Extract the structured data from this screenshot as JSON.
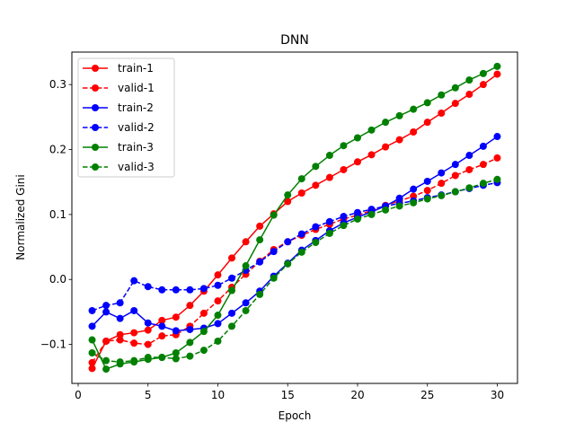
{
  "chart_data": {
    "type": "line",
    "title": "DNN",
    "xlabel": "Epoch",
    "ylabel": "Normalized Gini",
    "xlim": [
      -0.45,
      31.45
    ],
    "ylim": [
      -0.16,
      0.35
    ],
    "xticks": [
      0,
      5,
      10,
      15,
      20,
      25,
      30
    ],
    "yticks": [
      -0.1,
      0.0,
      0.1,
      0.2,
      0.3
    ],
    "ytick_labels": [
      "−0.1",
      "0.0",
      "0.1",
      "0.2",
      "0.3"
    ],
    "grid": false,
    "legend_position": "upper-left",
    "x": [
      1,
      2,
      3,
      4,
      5,
      6,
      7,
      8,
      9,
      10,
      11,
      12,
      13,
      14,
      15,
      16,
      17,
      18,
      19,
      20,
      21,
      22,
      23,
      24,
      25,
      26,
      27,
      28,
      29,
      30
    ],
    "series": [
      {
        "name": "train-1",
        "color": "#ff0000",
        "dash": false,
        "values": [
          -0.137,
          -0.095,
          -0.085,
          -0.082,
          -0.078,
          -0.063,
          -0.058,
          -0.04,
          -0.018,
          0.007,
          0.033,
          0.058,
          0.082,
          0.101,
          0.12,
          0.133,
          0.145,
          0.157,
          0.169,
          0.181,
          0.192,
          0.204,
          0.215,
          0.227,
          0.242,
          0.256,
          0.271,
          0.285,
          0.3,
          0.316
        ]
      },
      {
        "name": "valid-1",
        "color": "#ff0000",
        "dash": true,
        "values": [
          -0.128,
          -0.095,
          -0.093,
          -0.098,
          -0.1,
          -0.087,
          -0.085,
          -0.072,
          -0.052,
          -0.033,
          -0.012,
          0.008,
          0.028,
          0.046,
          0.058,
          0.068,
          0.077,
          0.085,
          0.093,
          0.099,
          0.106,
          0.114,
          0.121,
          0.128,
          0.137,
          0.148,
          0.16,
          0.169,
          0.177,
          0.187
        ]
      },
      {
        "name": "train-2",
        "color": "#0000ff",
        "dash": false,
        "values": [
          -0.072,
          -0.05,
          -0.06,
          -0.048,
          -0.067,
          -0.072,
          -0.079,
          -0.077,
          -0.075,
          -0.068,
          -0.052,
          -0.036,
          -0.018,
          0.005,
          0.025,
          0.045,
          0.06,
          0.075,
          0.087,
          0.096,
          0.104,
          0.113,
          0.125,
          0.139,
          0.151,
          0.164,
          0.177,
          0.191,
          0.205,
          0.22
        ]
      },
      {
        "name": "valid-2",
        "color": "#0000ff",
        "dash": true,
        "values": [
          -0.048,
          -0.04,
          -0.036,
          -0.002,
          -0.011,
          -0.016,
          -0.016,
          -0.016,
          -0.014,
          -0.009,
          0.002,
          0.014,
          0.027,
          0.043,
          0.058,
          0.07,
          0.081,
          0.089,
          0.097,
          0.103,
          0.108,
          0.113,
          0.117,
          0.121,
          0.126,
          0.13,
          0.135,
          0.14,
          0.145,
          0.149
        ]
      },
      {
        "name": "train-3",
        "color": "#008000",
        "dash": false,
        "values": [
          -0.093,
          -0.138,
          -0.13,
          -0.127,
          -0.123,
          -0.12,
          -0.113,
          -0.097,
          -0.08,
          -0.055,
          -0.017,
          0.021,
          0.061,
          0.099,
          0.13,
          0.155,
          0.174,
          0.191,
          0.206,
          0.218,
          0.23,
          0.242,
          0.252,
          0.262,
          0.272,
          0.284,
          0.295,
          0.307,
          0.317,
          0.328
        ]
      },
      {
        "name": "valid-3",
        "color": "#008000",
        "dash": true,
        "values": [
          -0.113,
          -0.125,
          -0.127,
          -0.125,
          -0.12,
          -0.12,
          -0.122,
          -0.118,
          -0.109,
          -0.095,
          -0.072,
          -0.048,
          -0.023,
          0.002,
          0.024,
          0.042,
          0.057,
          0.071,
          0.083,
          0.093,
          0.1,
          0.107,
          0.113,
          0.118,
          0.124,
          0.129,
          0.135,
          0.141,
          0.148,
          0.154
        ]
      }
    ]
  }
}
